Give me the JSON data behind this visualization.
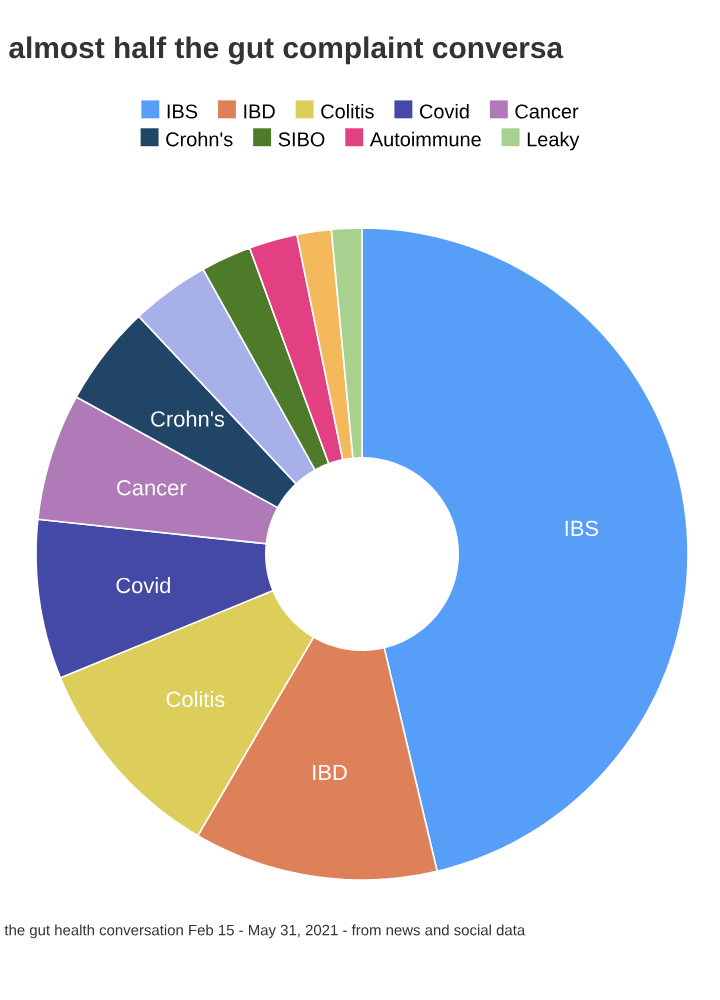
{
  "chart_data": {
    "type": "donut",
    "title": "almost half the gut complaint conversa",
    "categories": [
      "IBS",
      "IBD",
      "Colitis",
      "Covid",
      "Cancer",
      "Crohn's",
      null,
      "SIBO",
      "Autoimmune",
      null,
      "Leaky"
    ],
    "values": [
      46.3,
      12.1,
      10.4,
      7.9,
      6.3,
      5.0,
      3.9,
      2.5,
      2.4,
      1.7,
      1.5
    ],
    "colors": [
      "#569ef7",
      "#de8159",
      "#ddcd5a",
      "#4349a4",
      "#b07ab8",
      "#214566",
      "#a7b0e8",
      "#4e7b2a",
      "#e24083",
      "#f4b95a",
      "#a8d08f"
    ],
    "legend": "top",
    "annotations": [
      "the gut health conversation Feb 15 - May 31, 2021 - from news and social data"
    ]
  }
}
